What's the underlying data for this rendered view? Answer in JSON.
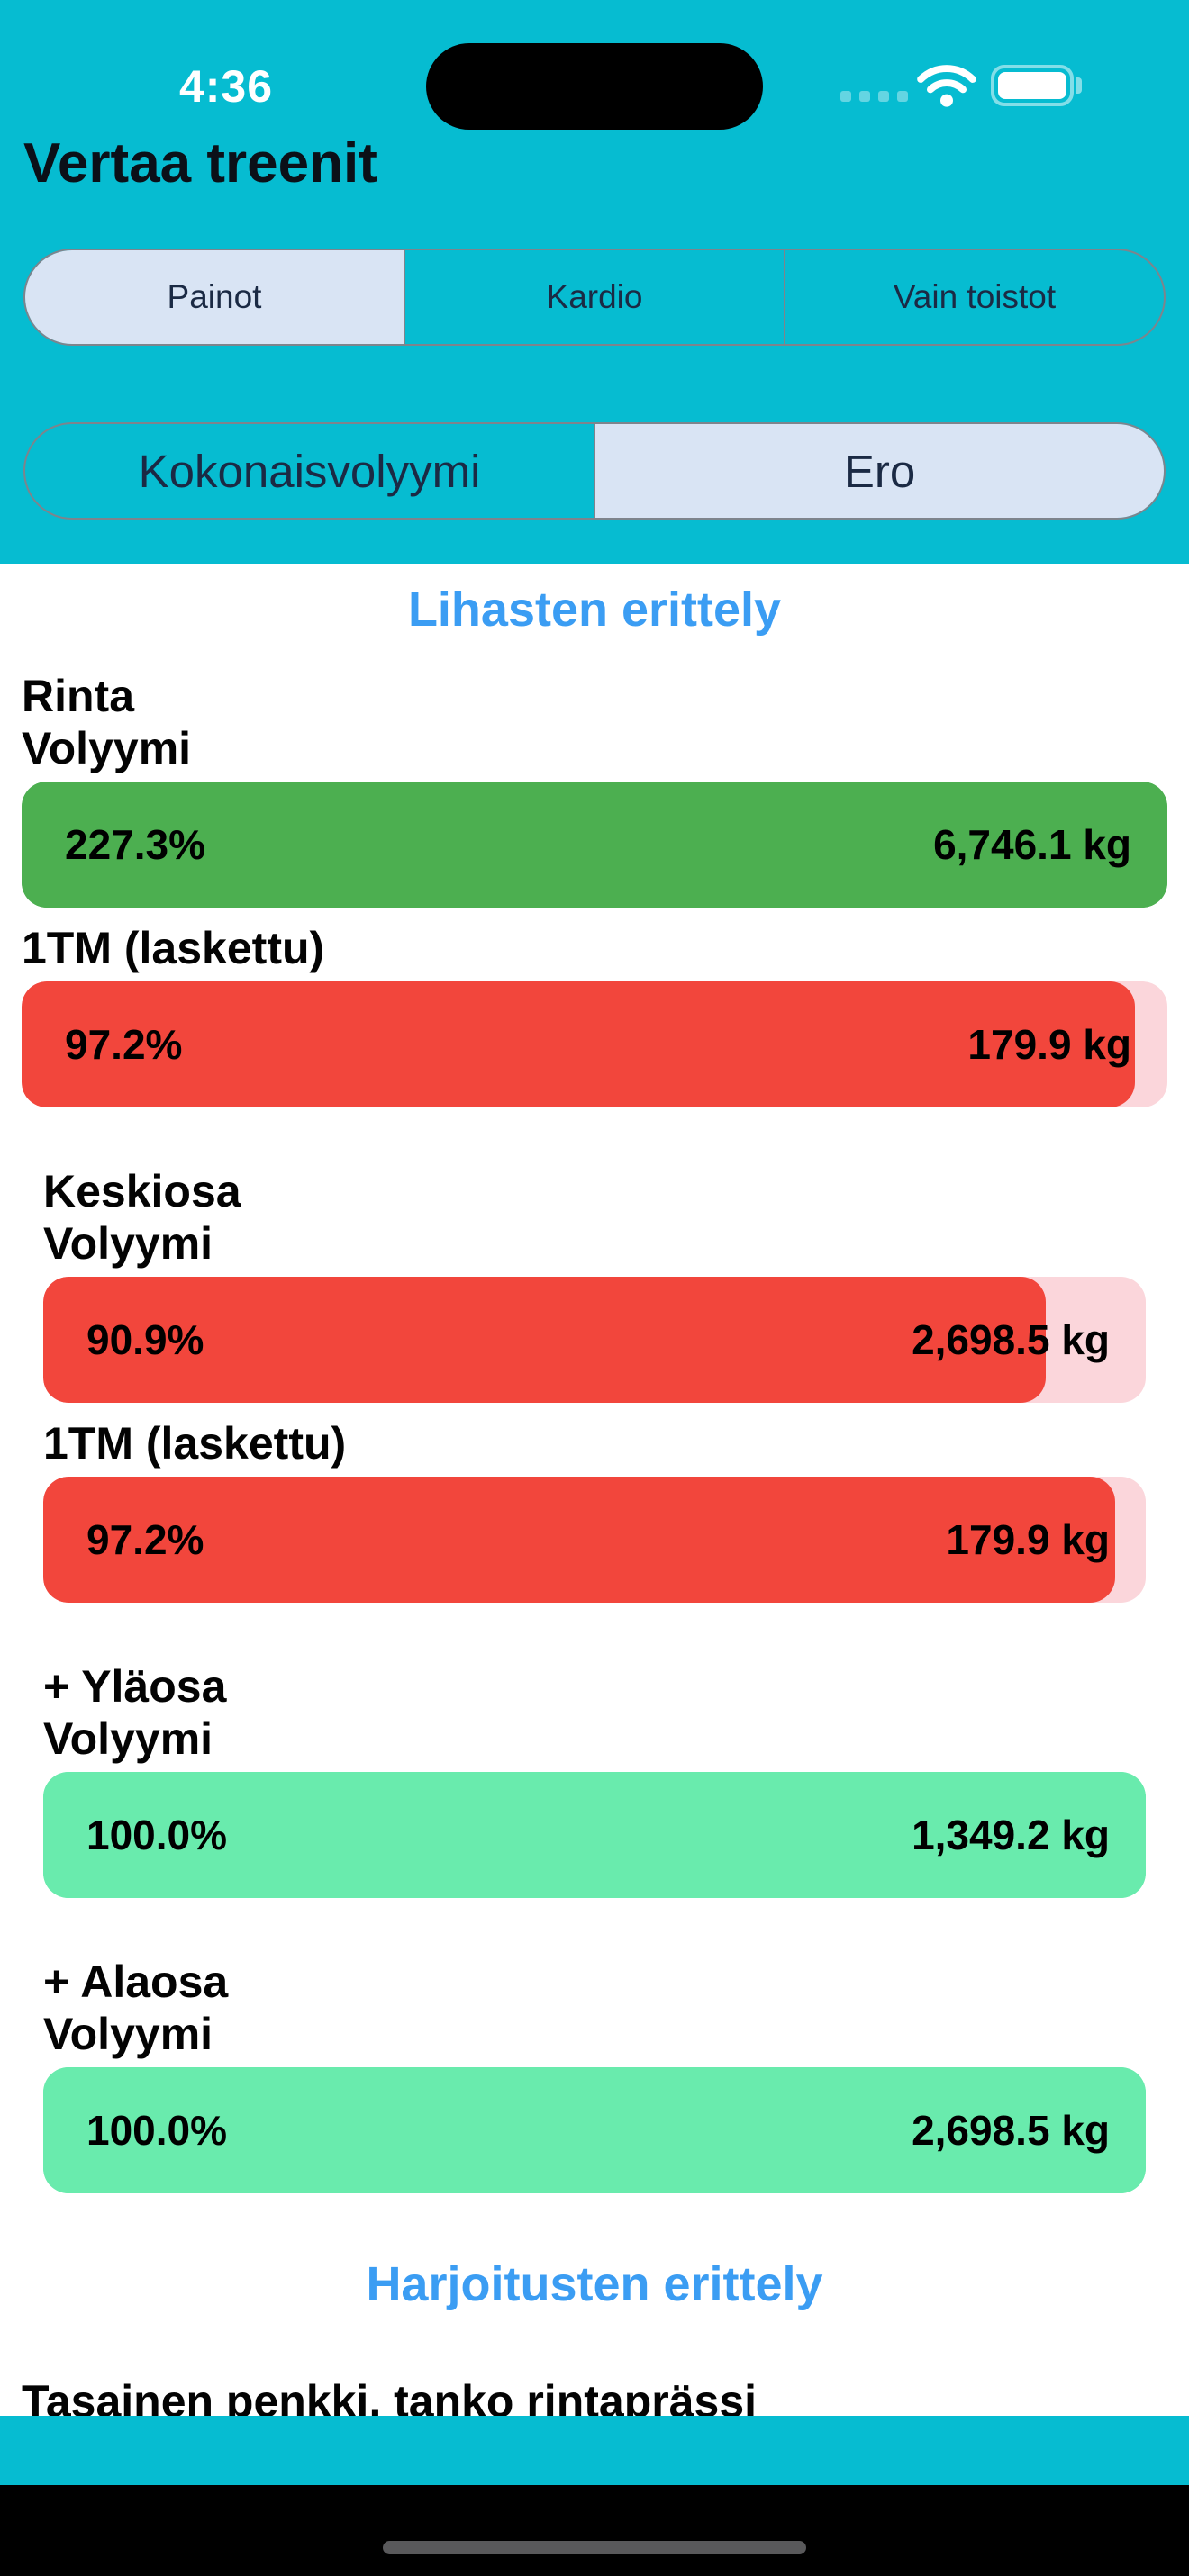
{
  "status_bar": {
    "time": "4:36",
    "icons": [
      "cellular-signal",
      "wifi",
      "battery-full"
    ]
  },
  "screen": {
    "title": "Vertaa treenit"
  },
  "workout_type_tabs": {
    "options": [
      {
        "label": "Painot",
        "selected": true
      },
      {
        "label": "Kardio",
        "selected": false
      },
      {
        "label": "Vain toistot",
        "selected": false
      }
    ]
  },
  "comparison_mode_tabs": {
    "options": [
      {
        "label": "Kokonaisvolyymi",
        "selected": false
      },
      {
        "label": "Ero",
        "selected": true
      }
    ]
  },
  "muscle_breakdown": {
    "heading": "Lihasten erittely",
    "groups": [
      {
        "name": "Rinta",
        "indent": false,
        "metrics": [
          {
            "label": "Volyymi",
            "percent_label": "227.3%",
            "value_label": "6,746.1 kg",
            "percent": 227.3,
            "style": "green"
          },
          {
            "label": "1TM (laskettu)",
            "percent_label": "97.2%",
            "value_label": "179.9 kg",
            "percent": 97.2,
            "style": "red"
          }
        ]
      },
      {
        "name": "Keskiosa",
        "indent": true,
        "metrics": [
          {
            "label": "Volyymi",
            "percent_label": "90.9%",
            "value_label": "2,698.5 kg",
            "percent": 90.9,
            "style": "red"
          },
          {
            "label": "1TM (laskettu)",
            "percent_label": "97.2%",
            "value_label": "179.9 kg",
            "percent": 97.2,
            "style": "red"
          }
        ]
      },
      {
        "name": "+ Yläosa",
        "indent": true,
        "metrics": [
          {
            "label": "Volyymi",
            "percent_label": "100.0%",
            "value_label": "1,349.2 kg",
            "percent": 100.0,
            "style": "mint"
          }
        ]
      },
      {
        "name": "+ Alaosa",
        "indent": true,
        "metrics": [
          {
            "label": "Volyymi",
            "percent_label": "100.0%",
            "value_label": "2,698.5 kg",
            "percent": 100.0,
            "style": "mint"
          }
        ]
      }
    ]
  },
  "exercise_breakdown": {
    "heading": "Harjoitusten erittely",
    "items": [
      "Tasainen penkki, tanko rintaprässi"
    ]
  },
  "colors": {
    "header_bg": "#06BCD1",
    "accent_blue": "#3B9DF3",
    "segment_selected_bg": "#D9E4F4",
    "segment_border": "#7E848C",
    "segment_text": "#1B2A44",
    "bar_styles": {
      "green": {
        "track": "#4CAF50",
        "fill": "#4CAF50"
      },
      "red": {
        "track": "#FBD6DB",
        "fill": "#F2463C"
      },
      "mint": {
        "track": "#69EBAD",
        "fill": "#69EBAD"
      }
    },
    "home_indicator": "#59595B"
  }
}
